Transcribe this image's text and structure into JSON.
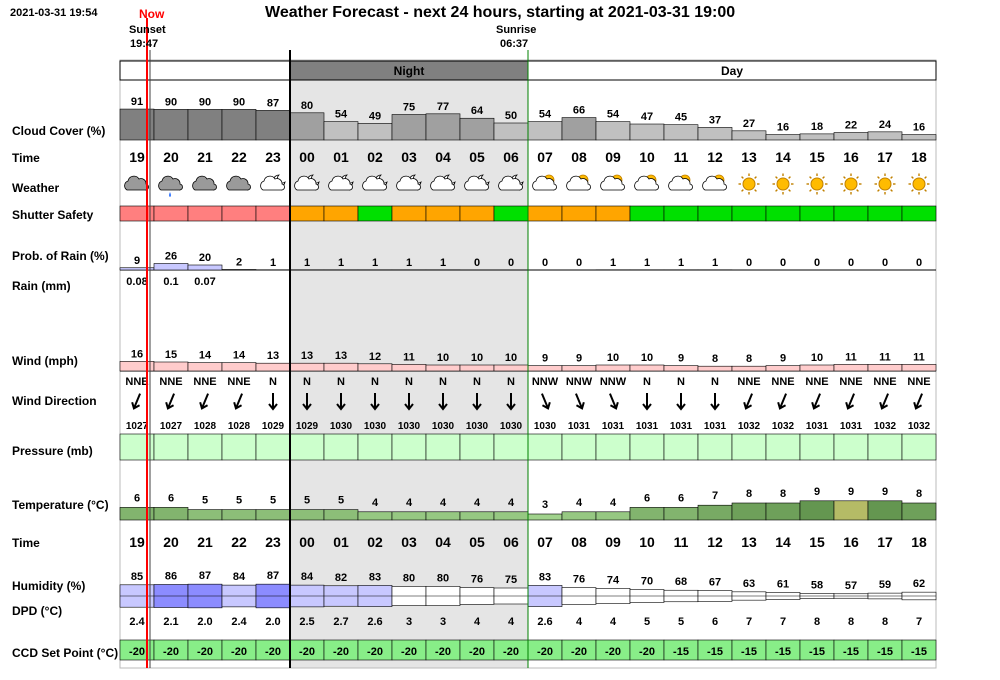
{
  "header": {
    "timestamp": "2021-03-31 19:54",
    "now_label": "Now",
    "title": "Weather Forecast - next 24 hours, starting at 2021-03-31 19:00",
    "sunset_label": "Sunset",
    "sunset_time": "19:47",
    "sunrise_label": "Sunrise",
    "sunrise_time": "06:37",
    "night_label": "Night",
    "day_label": "Day"
  },
  "row_labels": {
    "cloud": "Cloud Cover (%)",
    "time": "Time",
    "weather": "Weather",
    "shutter": "Shutter Safety",
    "prob_rain": "Prob. of Rain (%)",
    "rain": "Rain (mm)",
    "wind": "Wind (mph)",
    "wind_dir": "Wind Direction",
    "pressure": "Pressure (mb)",
    "temperature": "Temperature (°C)",
    "time2": "Time",
    "humidity": "Humidity (%)",
    "dpd": "DPD (°C)",
    "ccd": "CCD Set Point (°C)"
  },
  "colors": {
    "night_bg": "#e5e5e5",
    "night_bar": "#808080",
    "shutter_red": "#ff7f7f",
    "shutter_orange": "#ffa500",
    "shutter_green": "#00e000",
    "wind_bar": "#ffcccc",
    "pressure_bar": "#ccffcc",
    "ccd_bar": "#88ee88",
    "now_line": "#ff0000",
    "sunrise_line": "#008000",
    "humidity_bar": "#8c8cff",
    "sun": "#ffbb00"
  },
  "chart_data": {
    "type": "table",
    "title": "Weather Forecast - next 24 hours, starting at 2021-03-31 19:00",
    "hours": [
      "19",
      "20",
      "21",
      "22",
      "23",
      "00",
      "01",
      "02",
      "03",
      "04",
      "05",
      "06",
      "07",
      "08",
      "09",
      "10",
      "11",
      "12",
      "13",
      "14",
      "15",
      "16",
      "17",
      "18"
    ],
    "cloud_cover": [
      91,
      90,
      90,
      90,
      87,
      80,
      54,
      49,
      75,
      77,
      64,
      50,
      54,
      66,
      54,
      47,
      45,
      37,
      27,
      16,
      18,
      22,
      24,
      16
    ],
    "weather_icons": [
      "cloud-icon",
      "cloud-rain-icon",
      "cloud-icon",
      "cloud-icon",
      "moon-cloud-icon",
      "moon-cloud-icon",
      "moon-cloud-icon",
      "moon-cloud-icon",
      "moon-cloud-icon",
      "moon-cloud-icon",
      "moon-cloud-icon",
      "moon-cloud-icon",
      "sun-cloud-icon",
      "sun-cloud-icon",
      "sun-cloud-icon",
      "sun-cloud-icon",
      "sun-cloud-icon",
      "sun-cloud-icon",
      "sun-icon",
      "sun-icon",
      "sun-icon",
      "sun-icon",
      "sun-icon",
      "sun-icon"
    ],
    "shutter_safety": [
      "red",
      "red",
      "red",
      "red",
      "red",
      "orange",
      "orange",
      "green",
      "orange",
      "orange",
      "orange",
      "green",
      "orange",
      "orange",
      "orange",
      "green",
      "green",
      "green",
      "green",
      "green",
      "green",
      "green",
      "green",
      "green"
    ],
    "prob_of_rain": [
      9,
      26,
      20,
      2,
      1,
      1,
      1,
      1,
      1,
      1,
      0,
      0,
      0,
      0,
      1,
      1,
      1,
      1,
      0,
      0,
      0,
      0,
      0,
      0
    ],
    "rain_mm": [
      "0.08",
      "0.1",
      "0.07",
      "",
      "",
      "",
      "",
      "",
      "",
      "",
      "",
      "",
      "",
      "",
      "",
      "",
      "",
      "",
      "",
      "",
      "",
      "",
      "",
      ""
    ],
    "wind_mph": [
      16,
      15,
      14,
      14,
      13,
      13,
      13,
      12,
      11,
      10,
      10,
      10,
      9,
      9,
      10,
      10,
      9,
      8,
      8,
      9,
      10,
      11,
      11,
      11
    ],
    "wind_direction": [
      "NNE",
      "NNE",
      "NNE",
      "NNE",
      "N",
      "N",
      "N",
      "N",
      "N",
      "N",
      "N",
      "N",
      "NNW",
      "NNW",
      "NNW",
      "N",
      "N",
      "N",
      "NNE",
      "NNE",
      "NNE",
      "NNE",
      "NNE",
      "NNE"
    ],
    "pressure_mb": [
      1027,
      1027,
      1028,
      1028,
      1029,
      1029,
      1030,
      1030,
      1030,
      1030,
      1030,
      1030,
      1030,
      1031,
      1031,
      1031,
      1031,
      1031,
      1032,
      1032,
      1031,
      1031,
      1032,
      1032
    ],
    "temperature_c": [
      6,
      6,
      5,
      5,
      5,
      5,
      5,
      4,
      4,
      4,
      4,
      4,
      3,
      4,
      4,
      6,
      6,
      7,
      8,
      8,
      9,
      9,
      9,
      8
    ],
    "humidity_pct": [
      85,
      86,
      87,
      84,
      87,
      84,
      82,
      83,
      80,
      80,
      76,
      75,
      83,
      76,
      74,
      70,
      68,
      67,
      63,
      61,
      58,
      57,
      59,
      62
    ],
    "dpd_c": [
      "2.4",
      "2.1",
      "2.0",
      "2.4",
      "2.0",
      "2.5",
      "2.7",
      "2.6",
      "3",
      "3",
      "4",
      "4",
      "2.6",
      "4",
      "4",
      "5",
      "5",
      "6",
      "7",
      "7",
      "8",
      "8",
      "8",
      "7"
    ],
    "ccd_set_point_c": [
      -20,
      -20,
      -20,
      -20,
      -20,
      -20,
      -20,
      -20,
      -20,
      -20,
      -20,
      -20,
      -20,
      -20,
      -20,
      -20,
      -15,
      -15,
      -15,
      -15,
      -15,
      -15,
      -15,
      -15
    ]
  }
}
